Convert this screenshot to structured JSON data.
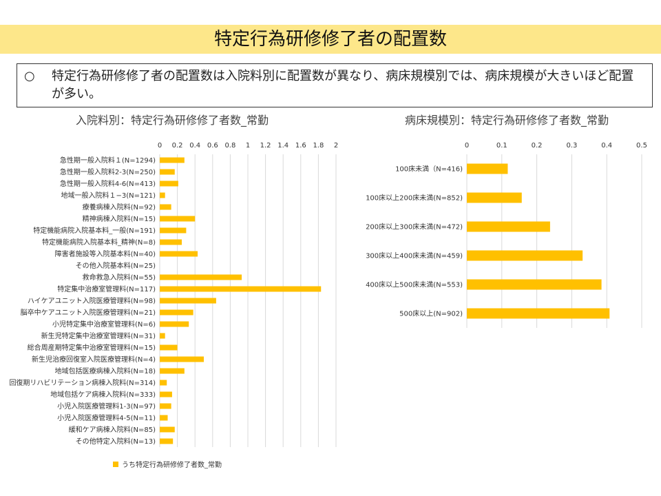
{
  "title": "特定行為研修修了者の配置数",
  "summary": {
    "bullet": "○",
    "text": "特定行為研修修了者の配置数は入院料別に配置数が異なり、病床規模別では、病床規模が大きいほど配置が多い。"
  },
  "colors": {
    "bar": "#ffc000",
    "grid": "#d9d9d9",
    "title_band": "#fde78a"
  },
  "chart_data": [
    {
      "type": "bar",
      "orientation": "horizontal",
      "title": "入院料別：特定行為研修修了者数_常勤",
      "xlim": [
        0,
        2
      ],
      "xticks": [
        "0",
        "0.2",
        "0.4",
        "0.6",
        "0.8",
        "1",
        "1.2",
        "1.4",
        "1.6",
        "1.8",
        "2"
      ],
      "grid": true,
      "legend_position": "bottom-left",
      "series": [
        {
          "name": "うち特定行為研修修了者数_常勤"
        }
      ],
      "categories": [
        "急性期一般入院料１(N=1294)",
        "急性期一般入院料2-3(N=250)",
        "急性期一般入院料4-6(N=413)",
        "地域一般入院料１−3(N=121)",
        "療養病棟入院料(N=92)",
        "精神病棟入院料(N=15)",
        "特定機能病院入院基本料_一般(N=191)",
        "特定機能病院入院基本料_精神(N=8)",
        "障害者施設等入院基本料(N=40)",
        "その他入院基本料(N=25)",
        "救命救急入院料(N=55)",
        "特定集中治療室管理料(N=117)",
        "ハイケアユニット入院医療管理料(N=98)",
        "脳卒中ケアユニット入院医療管理料(N=21)",
        "小児特定集中治療室管理料(N=6)",
        "新生児特定集中治療室管理料(N=31)",
        "総合周産期特定集中治療室管理料(N=15)",
        "新生児治療回復室入院医療管理料(N=4)",
        "地域包括医療病棟入院料(N=18)",
        "回復期リハビリテーション病棟入院料(N=314)",
        "地域包括ケア病棟入院料(N=333)",
        "小児入院医療管理料1-3(N=97)",
        "小児入院医療管理料4-5(N=11)",
        "緩和ケア病棟入院料(N=85)",
        "その他特定入院料(N=13)"
      ],
      "values": [
        0.28,
        0.17,
        0.21,
        0.06,
        0.13,
        0.4,
        0.3,
        0.25,
        0.43,
        0,
        0.93,
        1.83,
        0.64,
        0.38,
        0.33,
        0.06,
        0.2,
        0.5,
        0.28,
        0.08,
        0.14,
        0.13,
        0.09,
        0.17,
        0.15
      ]
    },
    {
      "type": "bar",
      "orientation": "horizontal",
      "title": "病床規模別：特定行為研修修了者数_常勤",
      "xlim": [
        0,
        0.5
      ],
      "xticks": [
        "0",
        "0.1",
        "0.2",
        "0.3",
        "0.4",
        "0.5"
      ],
      "grid": true,
      "categories": [
        "100床未満（N=416)",
        "100床以上200床未満(N=852)",
        "200床以上300床未満(N=472)",
        "300床以上400床未満(N=459)",
        "400床以上500床未満(N=553)",
        "500床以上(N=902)"
      ],
      "values": [
        0.117,
        0.157,
        0.238,
        0.331,
        0.385,
        0.408
      ]
    }
  ]
}
